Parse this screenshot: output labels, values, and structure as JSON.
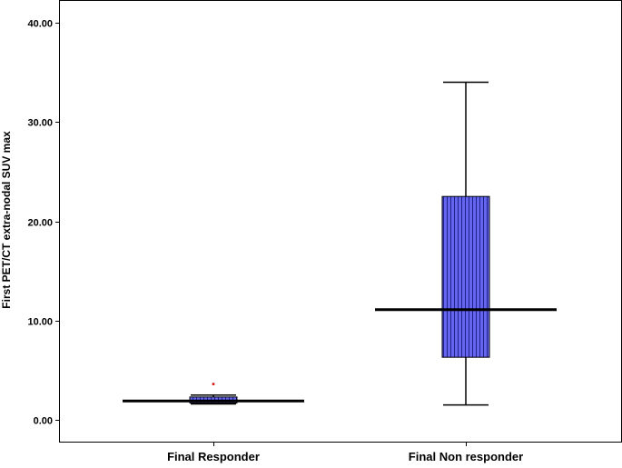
{
  "chart_data": {
    "type": "box",
    "ylabel": "First PET/CT extra-nodal SUV max",
    "xlabel": "",
    "ylim": [
      -1.5,
      42.5
    ],
    "yticks": [
      0,
      10,
      20,
      30,
      40
    ],
    "ytick_labels": [
      "0.00",
      "10.00",
      "20.00",
      "30.00",
      "40.00"
    ],
    "categories": [
      "Final Responder",
      "Final Non responder"
    ],
    "boxes": [
      {
        "category": "Final Responder",
        "min": 1.6,
        "q1": 1.7,
        "median": 1.9,
        "q3": 2.3,
        "max": 2.5,
        "outliers": [
          3.6
        ],
        "fill": "#6a6cf0"
      },
      {
        "category": "Final Non responder",
        "min": 1.5,
        "q1": 6.3,
        "median": 11.1,
        "q3": 22.5,
        "max": 34.0,
        "outliers": [],
        "fill": "#5a5ce8"
      }
    ],
    "outlier_color": "#d62020",
    "grid": false,
    "legend": "none"
  }
}
